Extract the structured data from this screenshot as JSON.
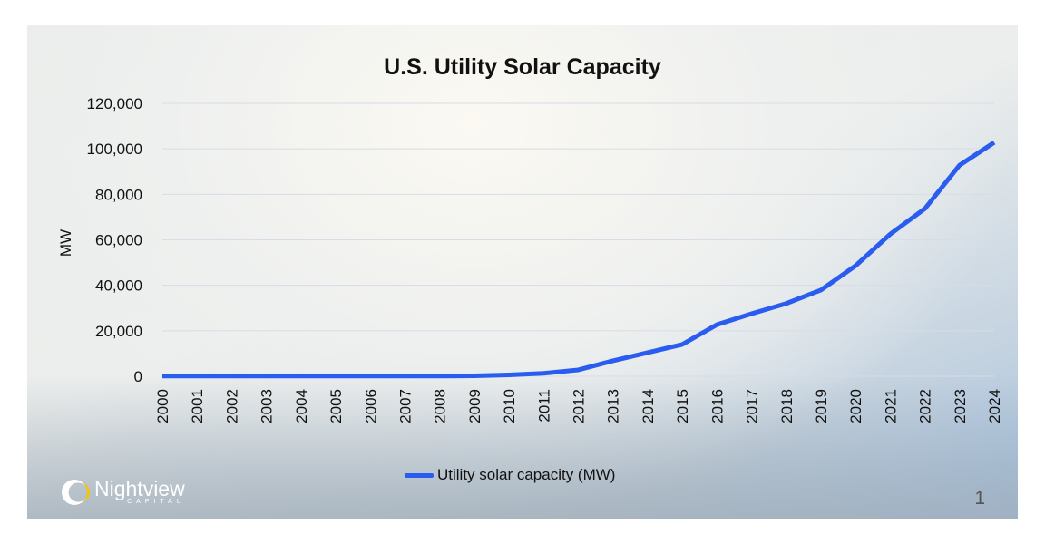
{
  "chart_data": {
    "type": "line",
    "title": "U.S. Utility Solar Capacity",
    "ylabel": "MW",
    "xlabel": "",
    "ylim": [
      0,
      120000
    ],
    "yticks": [
      "0",
      "20,000",
      "40,000",
      "60,000",
      "80,000",
      "100,000",
      "120,000"
    ],
    "grid": true,
    "legend_position": "bottom",
    "categories": [
      "2000",
      "2001",
      "2002",
      "2003",
      "2004",
      "2005",
      "2006",
      "2007",
      "2008",
      "2009",
      "2010",
      "2011",
      "2012",
      "2013",
      "2014",
      "2015",
      "2016",
      "2017",
      "2018",
      "2019",
      "2020",
      "2021",
      "2022",
      "2023",
      "2024"
    ],
    "series": [
      {
        "name": "Utility solar capacity (MW)",
        "color": "#2a5cf0",
        "values": [
          100,
          100,
          100,
          100,
          100,
          100,
          100,
          100,
          100,
          200,
          600,
          1300,
          2800,
          6800,
          10400,
          14000,
          22700,
          27500,
          32000,
          37900,
          48600,
          62500,
          73700,
          92800,
          102800
        ]
      }
    ]
  },
  "logo": {
    "name": "Nightview",
    "sub": "CAPITAL"
  },
  "page_number": "1"
}
